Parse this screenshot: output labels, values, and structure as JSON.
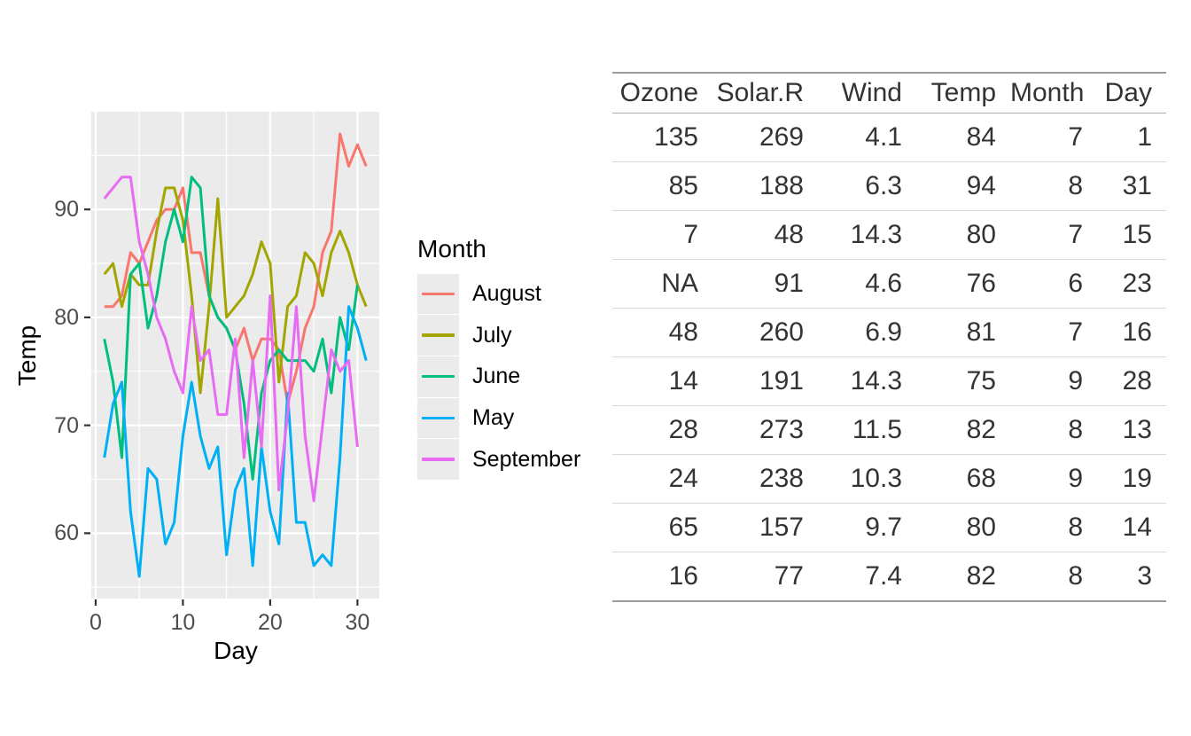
{
  "chart_data": {
    "type": "line",
    "title": "",
    "xlabel": "Day",
    "ylabel": "Temp",
    "xlim": [
      -0.5,
      32.5
    ],
    "ylim": [
      53.95,
      99.05
    ],
    "x_ticks": [
      0,
      10,
      20,
      30
    ],
    "y_ticks": [
      60,
      70,
      80,
      90
    ],
    "x_minor": [
      5,
      15,
      25
    ],
    "y_minor": [
      55,
      65,
      75,
      85,
      95
    ],
    "grid": "white major+minor gridlines on grey panel",
    "panel_bg": "#EBEBEB",
    "tick_color": "#333333",
    "axis_text_color": "#4D4D4D",
    "legend_title": "Month",
    "legend_position": "right",
    "x_start_day": 1,
    "series": [
      {
        "name": "August",
        "color": "#F8766D",
        "values": [
          81,
          81,
          82,
          86,
          85,
          87,
          89,
          90,
          90,
          92,
          86,
          86,
          82,
          80,
          79,
          77,
          79,
          76,
          78,
          78,
          77,
          72,
          75,
          79,
          81,
          86,
          88,
          97,
          94,
          96,
          94
        ]
      },
      {
        "name": "July",
        "color": "#A3A500",
        "values": [
          84,
          85,
          81,
          84,
          83,
          83,
          88,
          92,
          92,
          89,
          82,
          73,
          81,
          91,
          80,
          81,
          82,
          84,
          87,
          85,
          74,
          81,
          82,
          86,
          85,
          82,
          86,
          88,
          86,
          83,
          81
        ]
      },
      {
        "name": "June",
        "color": "#00BF7D",
        "values": [
          78,
          74,
          67,
          84,
          85,
          79,
          82,
          87,
          90,
          87,
          93,
          92,
          82,
          80,
          79,
          77,
          72,
          65,
          73,
          76,
          77,
          76,
          76,
          76,
          75,
          78,
          73,
          80,
          77,
          83
        ]
      },
      {
        "name": "May",
        "color": "#00B0F6",
        "values": [
          67,
          72,
          74,
          62,
          56,
          66,
          65,
          59,
          61,
          69,
          74,
          69,
          66,
          68,
          58,
          64,
          66,
          57,
          68,
          62,
          59,
          73,
          61,
          61,
          57,
          58,
          57,
          67,
          81,
          79,
          76
        ]
      },
      {
        "name": "September",
        "color": "#E76BF3",
        "values": [
          91,
          92,
          93,
          93,
          87,
          84,
          80,
          78,
          75,
          73,
          81,
          76,
          77,
          71,
          71,
          78,
          67,
          76,
          68,
          82,
          64,
          71,
          81,
          69,
          63,
          70,
          77,
          75,
          76,
          68
        ]
      }
    ]
  },
  "table": {
    "columns": [
      "Ozone",
      "Solar.R",
      "Wind",
      "Temp",
      "Month",
      "Day"
    ],
    "rows": [
      [
        "135",
        "269",
        "4.1",
        "84",
        "7",
        "1"
      ],
      [
        "85",
        "188",
        "6.3",
        "94",
        "8",
        "31"
      ],
      [
        "7",
        "48",
        "14.3",
        "80",
        "7",
        "15"
      ],
      [
        "NA",
        "91",
        "4.6",
        "76",
        "6",
        "23"
      ],
      [
        "48",
        "260",
        "6.9",
        "81",
        "7",
        "16"
      ],
      [
        "14",
        "191",
        "14.3",
        "75",
        "9",
        "28"
      ],
      [
        "28",
        "273",
        "11.5",
        "82",
        "8",
        "13"
      ],
      [
        "24",
        "238",
        "10.3",
        "68",
        "9",
        "19"
      ],
      [
        "65",
        "157",
        "9.7",
        "80",
        "8",
        "14"
      ],
      [
        "16",
        "77",
        "7.4",
        "82",
        "8",
        "3"
      ]
    ]
  }
}
